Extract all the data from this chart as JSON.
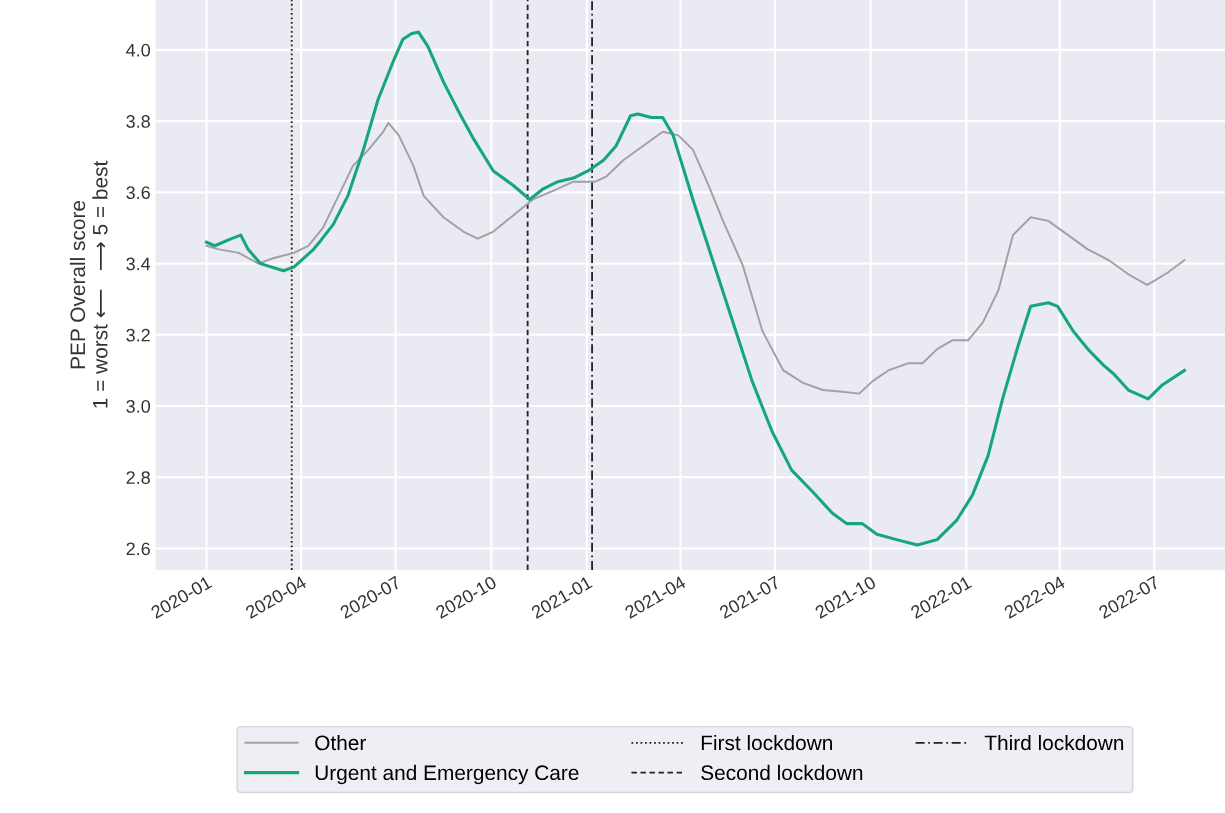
{
  "chart_data": {
    "type": "line",
    "ylabel": "PEP Overall score\n1 = worst ⟵   ⟶ 5 = best",
    "xlim": [
      "2019-11-13",
      "2022-09-07"
    ],
    "ylim": [
      2.54,
      4.14
    ],
    "xticks": [
      "2020-01",
      "2020-04",
      "2020-07",
      "2020-10",
      "2021-01",
      "2021-04",
      "2021-07",
      "2021-10",
      "2022-01",
      "2022-04",
      "2022-07"
    ],
    "yticks": [
      {
        "value": 2.6,
        "label": "2.6"
      },
      {
        "value": 2.8,
        "label": "2.8"
      },
      {
        "value": 3.0,
        "label": "3.0"
      },
      {
        "value": 3.2,
        "label": "3.2"
      },
      {
        "value": 3.4,
        "label": "3.4"
      },
      {
        "value": 3.6,
        "label": "3.6"
      },
      {
        "value": 3.8,
        "label": "3.8"
      },
      {
        "value": 4.0,
        "label": "4.0"
      }
    ],
    "grid": true,
    "legend": "bottom",
    "line_style": "solid",
    "marker": "none",
    "series": [
      {
        "name": "Other",
        "color": "#a0a0a6",
        "x": [
          "2020-01-01",
          "2020-01-13",
          "2020-02-01",
          "2020-02-20",
          "2020-03-05",
          "2020-03-25",
          "2020-04-08",
          "2020-04-22",
          "2020-05-07",
          "2020-05-21",
          "2020-06-05",
          "2020-06-19",
          "2020-06-24",
          "2020-07-04",
          "2020-07-18",
          "2020-07-28",
          "2020-08-16",
          "2020-09-04",
          "2020-09-18",
          "2020-10-03",
          "2020-10-22",
          "2020-11-10",
          "2020-11-30",
          "2020-12-19",
          "2021-01-09",
          "2021-01-20",
          "2021-02-05",
          "2021-02-24",
          "2021-03-15",
          "2021-03-30",
          "2021-04-13",
          "2021-04-28",
          "2021-05-12",
          "2021-05-31",
          "2021-06-19",
          "2021-07-09",
          "2021-07-28",
          "2021-08-16",
          "2021-09-04",
          "2021-09-20",
          "2021-10-03",
          "2021-10-18",
          "2021-11-06",
          "2021-11-20",
          "2021-12-04",
          "2021-12-19",
          "2022-01-03",
          "2022-01-17",
          "2022-02-01",
          "2022-02-15",
          "2022-03-04",
          "2022-03-21",
          "2022-04-09",
          "2022-04-28",
          "2022-05-18",
          "2022-06-06",
          "2022-06-24",
          "2022-06-30",
          "2022-07-14",
          "2022-07-30"
        ],
        "values": [
          3.45,
          3.44,
          3.43,
          3.4,
          3.415,
          3.43,
          3.45,
          3.5,
          3.59,
          3.675,
          3.72,
          3.77,
          3.795,
          3.76,
          3.675,
          3.59,
          3.53,
          3.49,
          3.47,
          3.49,
          3.535,
          3.58,
          3.605,
          3.63,
          3.63,
          3.645,
          3.69,
          3.73,
          3.77,
          3.76,
          3.72,
          3.62,
          3.52,
          3.395,
          3.21,
          3.1,
          3.065,
          3.045,
          3.04,
          3.035,
          3.07,
          3.1,
          3.12,
          3.12,
          3.16,
          3.185,
          3.185,
          3.235,
          3.325,
          3.48,
          3.53,
          3.52,
          3.48,
          3.44,
          3.41,
          3.37,
          3.34,
          3.35,
          3.375,
          3.41
        ]
      },
      {
        "name": "Urgent and Emergency Care",
        "color": "#16a67e",
        "x": [
          "2020-01-01",
          "2020-01-09",
          "2020-01-25",
          "2020-02-03",
          "2020-02-10",
          "2020-02-22",
          "2020-03-15",
          "2020-03-25",
          "2020-04-13",
          "2020-04-20",
          "2020-05-02",
          "2020-05-16",
          "2020-05-31",
          "2020-06-14",
          "2020-06-29",
          "2020-07-08",
          "2020-07-16",
          "2020-07-23",
          "2020-08-01",
          "2020-08-16",
          "2020-08-30",
          "2020-09-14",
          "2020-10-03",
          "2020-10-22",
          "2020-11-07",
          "2020-11-20",
          "2020-12-04",
          "2020-12-19",
          "2021-01-02",
          "2021-01-17",
          "2021-01-29",
          "2021-02-12",
          "2021-02-19",
          "2021-03-04",
          "2021-03-15",
          "2021-03-25",
          "2021-04-13",
          "2021-05-02",
          "2021-05-21",
          "2021-06-09",
          "2021-06-28",
          "2021-07-17",
          "2021-08-06",
          "2021-08-25",
          "2021-09-08",
          "2021-09-23",
          "2021-10-07",
          "2021-10-26",
          "2021-11-15",
          "2021-12-04",
          "2021-12-23",
          "2022-01-07",
          "2022-01-22",
          "2022-02-05",
          "2022-02-20",
          "2022-03-04",
          "2022-03-21",
          "2022-03-30",
          "2022-04-14",
          "2022-04-28",
          "2022-05-13",
          "2022-05-23",
          "2022-06-06",
          "2022-06-25",
          "2022-07-09",
          "2022-07-30"
        ],
        "values": [
          3.46,
          3.45,
          3.47,
          3.48,
          3.44,
          3.4,
          3.38,
          3.39,
          3.44,
          3.465,
          3.51,
          3.59,
          3.72,
          3.86,
          3.97,
          4.03,
          4.045,
          4.05,
          4.01,
          3.91,
          3.83,
          3.75,
          3.66,
          3.62,
          3.58,
          3.61,
          3.63,
          3.64,
          3.66,
          3.69,
          3.73,
          3.815,
          3.82,
          3.81,
          3.81,
          3.76,
          3.58,
          3.41,
          3.24,
          3.07,
          2.93,
          2.82,
          2.76,
          2.7,
          2.67,
          2.67,
          2.64,
          2.625,
          2.61,
          2.625,
          2.68,
          2.75,
          2.86,
          3.02,
          3.17,
          3.28,
          3.29,
          3.28,
          3.21,
          3.16,
          3.115,
          3.09,
          3.045,
          3.02,
          3.06,
          3.1
        ]
      }
    ],
    "ref_lines": [
      {
        "axis": "x",
        "value": "2020-03-23",
        "label": "First lockdown",
        "color": "#222222",
        "line_style": "dotted"
      },
      {
        "axis": "x",
        "value": "2020-11-05",
        "label": "Second lockdown",
        "color": "#222222",
        "line_style": "dashed"
      },
      {
        "axis": "x",
        "value": "2021-01-06",
        "label": "Third lockdown",
        "color": "#222222",
        "line_style": "dashdot"
      }
    ]
  }
}
